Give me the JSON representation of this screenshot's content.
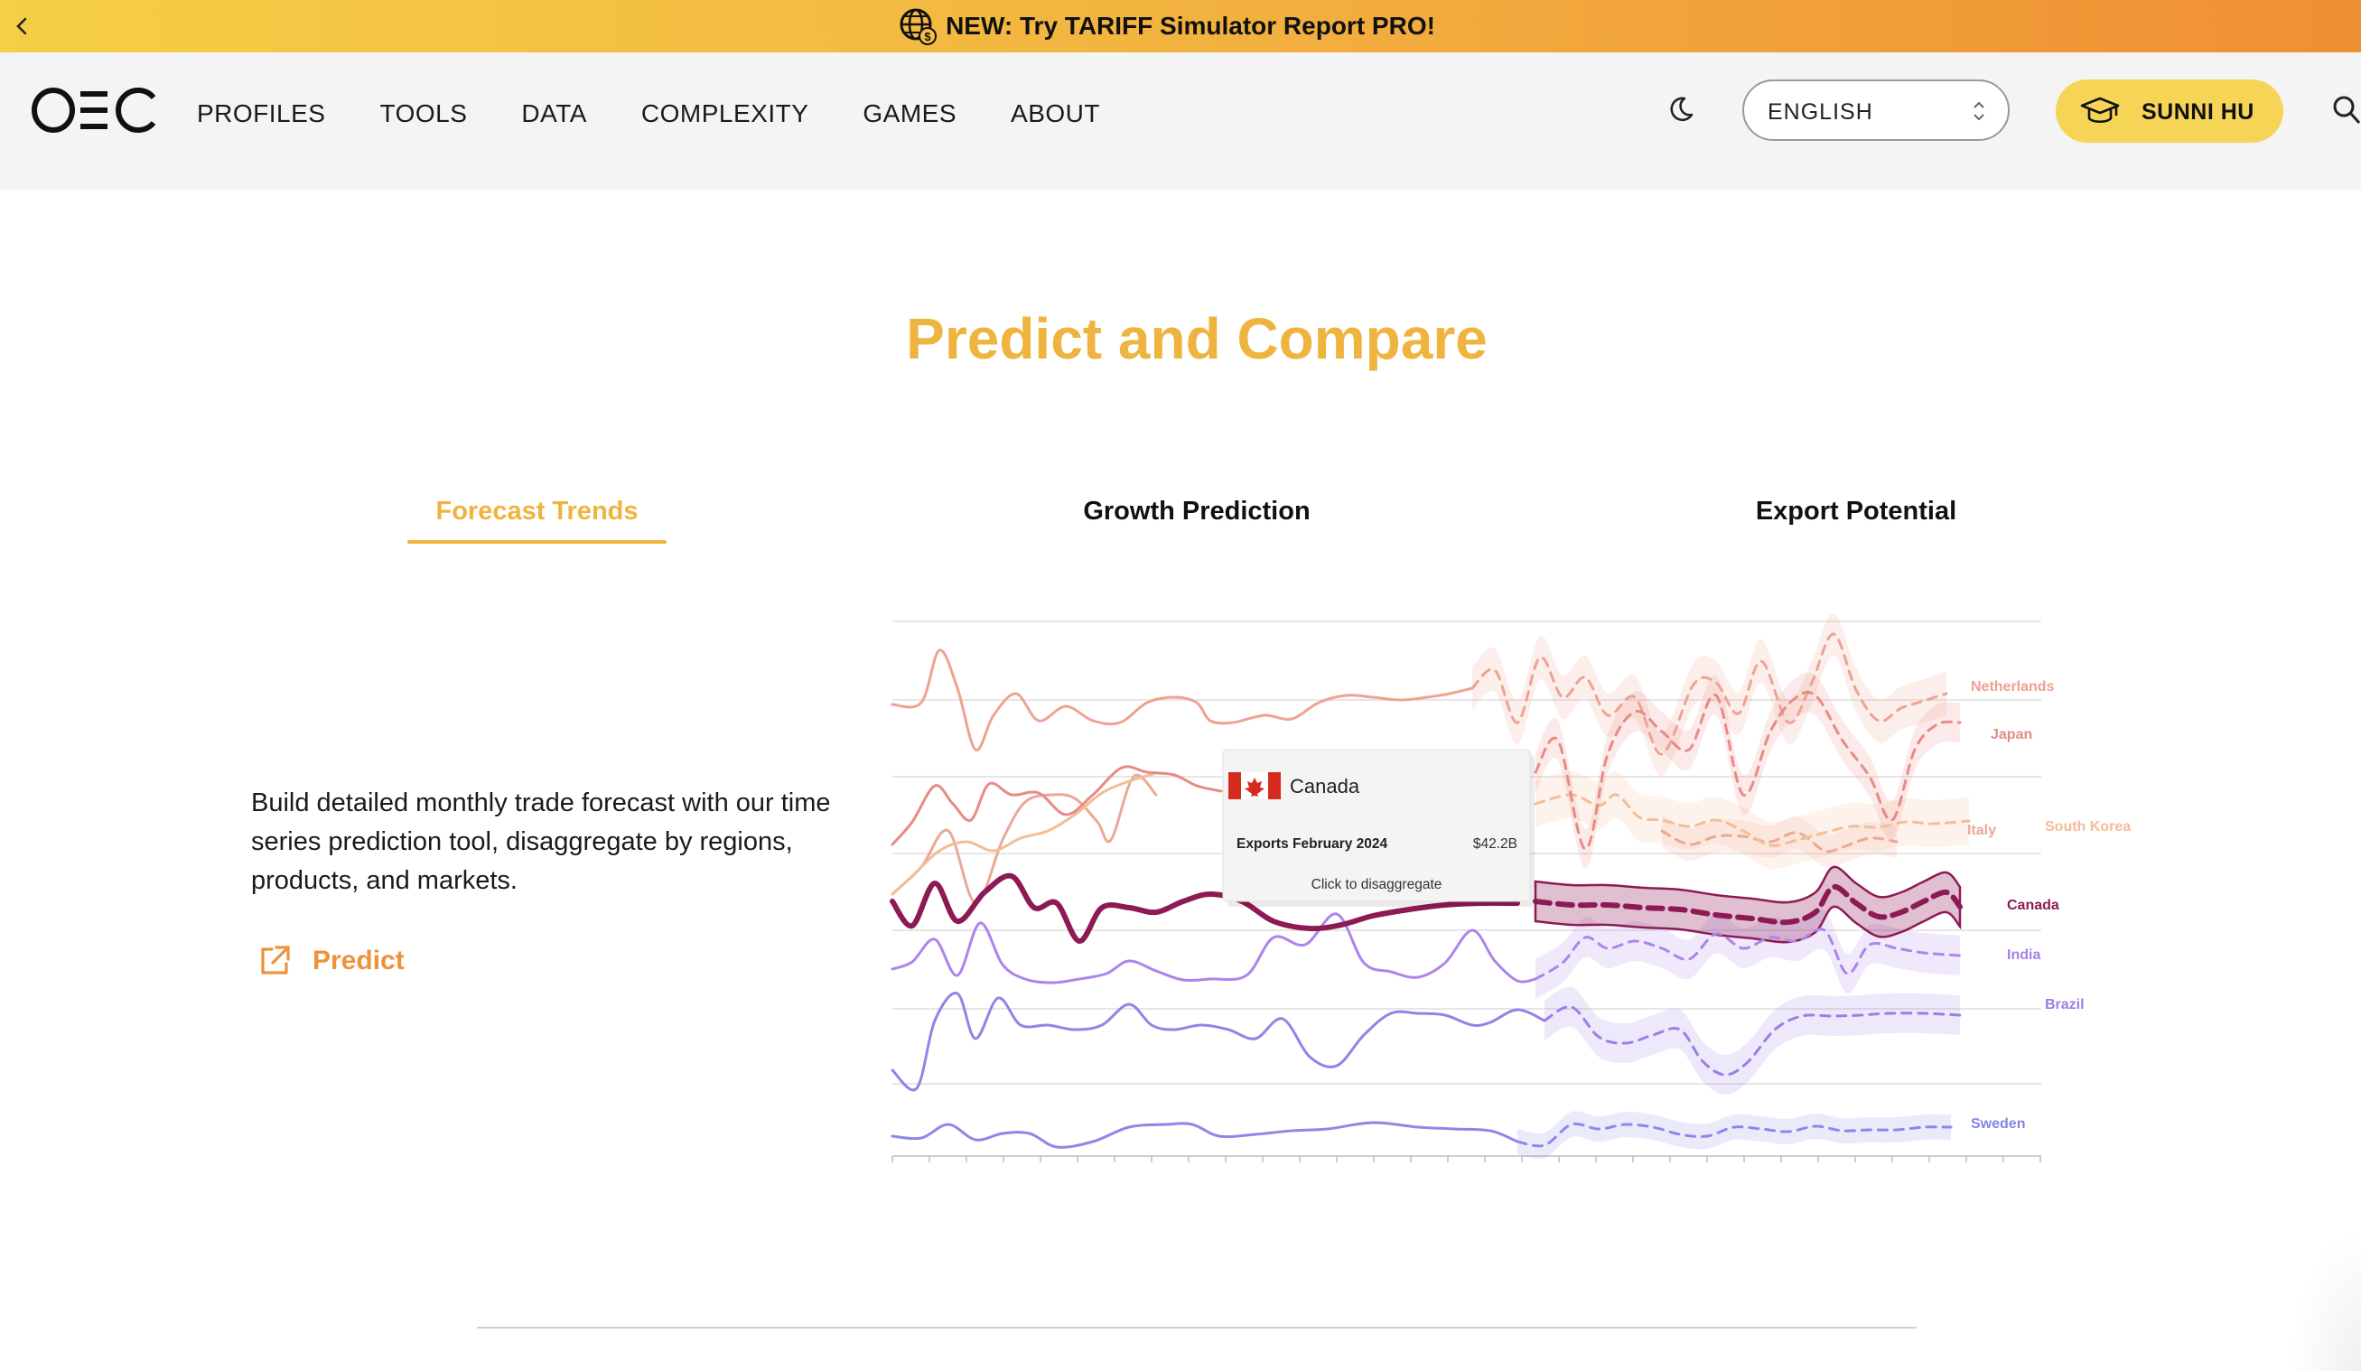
{
  "banner": {
    "message": "NEW: Try TARIFF Simulator Report PRO!"
  },
  "nav": {
    "logo": "OEC",
    "links": [
      "PROFILES",
      "TOOLS",
      "DATA",
      "COMPLEXITY",
      "GAMES",
      "ABOUT"
    ],
    "language": "ENGLISH",
    "user": "SUNNI HU"
  },
  "section": {
    "title": "Predict and Compare",
    "tabs": [
      "Forecast Trends",
      "Growth Prediction",
      "Export Potential"
    ],
    "active_tab": "Forecast Trends",
    "description": "Build detailed monthly trade forecast with our time series prediction tool, disaggregate by regions, products, and markets.",
    "link_label": "Predict"
  },
  "chart_data": {
    "type": "line",
    "series": [
      {
        "name": "Netherlands",
        "color": "#eea391",
        "forecast": true
      },
      {
        "name": "Japan",
        "color": "#e88a86",
        "forecast": true
      },
      {
        "name": "South Korea",
        "color": "#f3bd95",
        "forecast": true
      },
      {
        "name": "Italy",
        "color": "#eca896",
        "forecast": true
      },
      {
        "name": "Canada",
        "color": "#8e1a55",
        "forecast": true,
        "highlighted": true
      },
      {
        "name": "India",
        "color": "#ad84ec",
        "forecast": true
      },
      {
        "name": "Brazil",
        "color": "#9a80e6",
        "forecast": true
      },
      {
        "name": "Sweden",
        "color": "#8c88ea",
        "forecast": true
      }
    ],
    "tooltip": {
      "country": "Canada",
      "label": "Exports February 2024",
      "value": "$42.2B",
      "hint": "Click to disaggregate"
    }
  }
}
